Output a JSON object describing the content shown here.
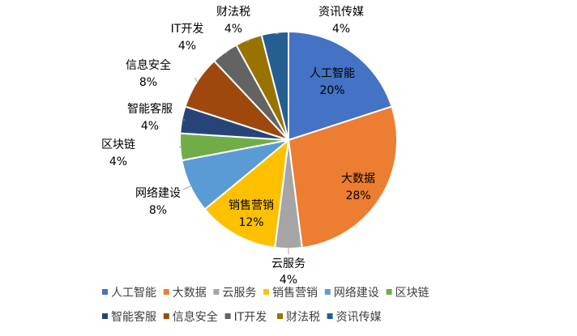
{
  "chart_data": {
    "type": "pie",
    "title": "",
    "legend_position": "bottom",
    "slices": [
      {
        "name": "人工智能",
        "value": 20,
        "label": "20%",
        "color": "#4472C4",
        "label_pos": "inside"
      },
      {
        "name": "大数据",
        "value": 28,
        "label": "28%",
        "color": "#ED7D31",
        "label_pos": "inside"
      },
      {
        "name": "云服务",
        "value": 4,
        "label": "4%",
        "color": "#A5A5A5",
        "label_pos": "outside"
      },
      {
        "name": "销售营销",
        "value": 12,
        "label": "12%",
        "color": "#FFC000",
        "label_pos": "inside"
      },
      {
        "name": "网络建设",
        "value": 8,
        "label": "8%",
        "color": "#5B9BD5",
        "label_pos": "outside"
      },
      {
        "name": "区块链",
        "value": 4,
        "label": "4%",
        "color": "#70AD47",
        "label_pos": "outside"
      },
      {
        "name": "智能客服",
        "value": 4,
        "label": "4%",
        "color": "#264478",
        "label_pos": "outside"
      },
      {
        "name": "信息安全",
        "value": 8,
        "label": "8%",
        "color": "#9E480E",
        "label_pos": "outside"
      },
      {
        "name": "IT开发",
        "value": 4,
        "label": "4%",
        "color": "#636363",
        "label_pos": "outside"
      },
      {
        "name": "财法税",
        "value": 4,
        "label": "4%",
        "color": "#997300",
        "label_pos": "outside"
      },
      {
        "name": "资讯传媒",
        "value": 4,
        "label": "4%",
        "color": "#255E91",
        "label_pos": "outside"
      }
    ]
  }
}
